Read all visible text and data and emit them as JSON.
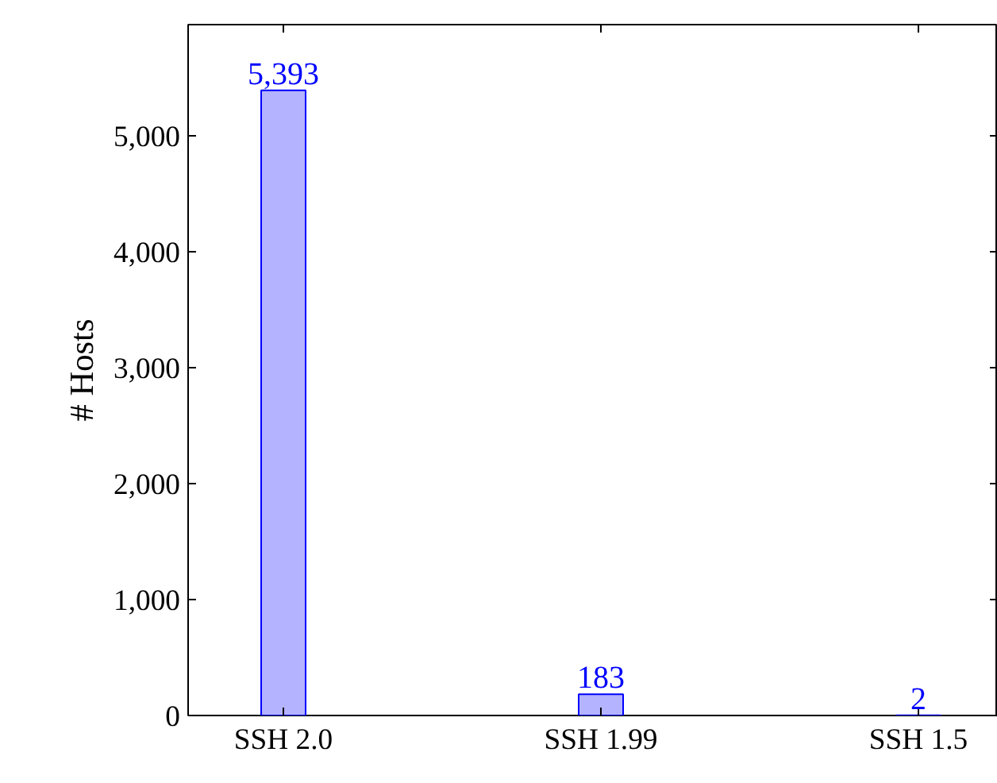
{
  "chart_data": {
    "type": "bar",
    "ylabel": "# Hosts",
    "categories": [
      "SSH 2.0",
      "SSH 1.99",
      "SSH 1.5"
    ],
    "values": [
      5393,
      183,
      2
    ],
    "color": "#b3b3ff",
    "data_labels": true,
    "value_labels": [
      "5,393",
      "183",
      "2"
    ],
    "ylim": [
      0,
      5960
    ],
    "yticks": [
      0,
      {
        "value": 1000,
        "label": "1,000"
      },
      {
        "value": 2000,
        "label": "2,000"
      },
      {
        "value": 3000,
        "label": "3,000"
      },
      {
        "value": 4000,
        "label": "4,000"
      },
      {
        "value": 5000,
        "label": "5,000"
      }
    ],
    "grid": false
  }
}
